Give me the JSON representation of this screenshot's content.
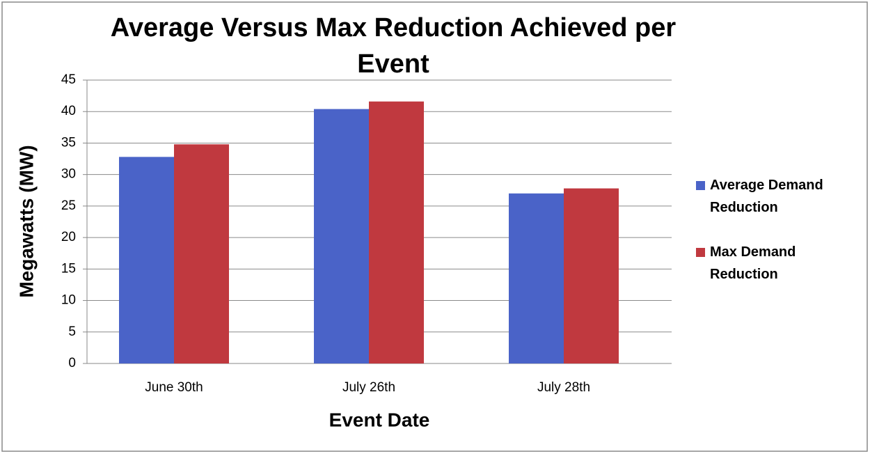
{
  "chart_data": {
    "type": "bar",
    "title": "Average Versus Max Reduction Achieved per Event",
    "x_label": "Event Date",
    "y_label": "Megawatts (MW)",
    "categories": [
      "June 30th",
      "July 26th",
      "July 28th"
    ],
    "series": [
      {
        "name": "Average Demand Reduction",
        "color": "#4a63c8",
        "values": [
          32.8,
          40.4,
          27.0
        ]
      },
      {
        "name": "Max Demand Reduction",
        "color": "#c0393f",
        "values": [
          34.8,
          41.6,
          27.8
        ]
      }
    ],
    "ylim": [
      0,
      45
    ],
    "yticks": [
      0,
      5,
      10,
      15,
      20,
      25,
      30,
      35,
      40,
      45
    ],
    "grid": true,
    "legend": "right"
  }
}
